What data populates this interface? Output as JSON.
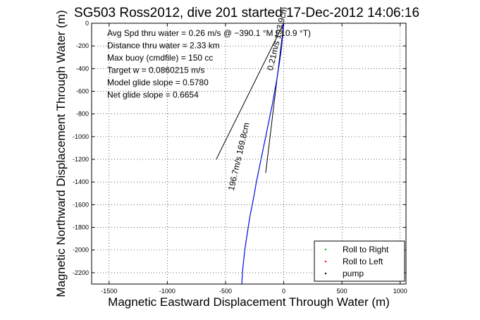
{
  "chart_data": {
    "type": "line",
    "title": "SG503 Ross2012, dive 201 started 17-Dec-2012 14:06:16",
    "xlabel": "Magnetic Eastward Displacement Through Water (m)",
    "ylabel": "Magnetic Northward Displacement Through Water (m)",
    "xlim": [
      -1650,
      1050
    ],
    "ylim": [
      -2300,
      0
    ],
    "xticks": [
      -1500,
      -1000,
      -500,
      0,
      500,
      1000
    ],
    "yticks": [
      0,
      -200,
      -400,
      -600,
      -800,
      -1000,
      -1200,
      -1400,
      -1600,
      -1800,
      -2000,
      -2200
    ],
    "grid": true,
    "legend_position": "bottom-right",
    "annotations": [
      "Avg Spd thru water =  0.26 m/s @ −390.1   °M ( 10.9 °T)",
      "Distance thru water =  2.33 km",
      "Max buoy (cmdfile) = 150 cc",
      "Target w = 0.0860215 m/s",
      "Model glide slope = 0.5780",
      "Net glide slope = 0.6654"
    ],
    "rotated_labels": [
      "196.7m/s  169.8cm",
      "0.21m/s  193.9cm"
    ],
    "series": [
      {
        "name": "",
        "color": "#0000ff",
        "x": [
          0,
          -8,
          -18,
          -30,
          -45,
          -60,
          -78,
          -95,
          -115,
          -135,
          -155,
          -175,
          -195,
          -215,
          -235,
          -252,
          -270,
          -290,
          -305,
          -320,
          -335,
          -345,
          -355,
          -360
        ],
        "y": [
          0,
          -100,
          -200,
          -300,
          -400,
          -500,
          -600,
          -700,
          -800,
          -900,
          -1000,
          -1100,
          -1200,
          -1300,
          -1400,
          -1500,
          -1600,
          -1700,
          -1800,
          -1900,
          -2000,
          -2100,
          -2200,
          -2300
        ]
      }
    ],
    "guides": [
      {
        "x": [
          0,
          -580
        ],
        "y": [
          0,
          -1200
        ]
      },
      {
        "x": [
          0,
          -155
        ],
        "y": [
          0,
          -1320
        ]
      }
    ],
    "legend": [
      {
        "label": "Roll to Right",
        "color": "#00c000"
      },
      {
        "label": "Roll to Left",
        "color": "#ff0000"
      },
      {
        "label": "pump",
        "color": "#000000"
      }
    ]
  }
}
